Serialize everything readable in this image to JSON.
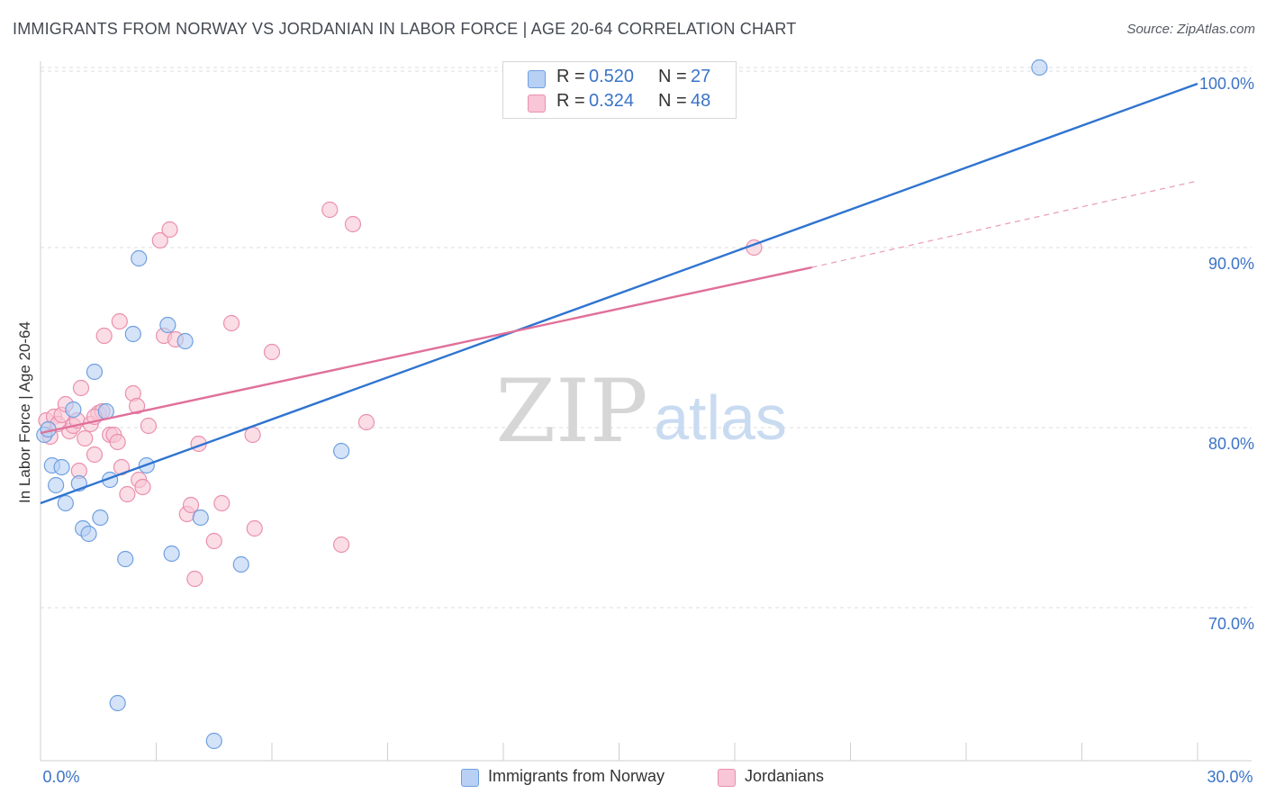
{
  "chart_data": {
    "type": "scatter",
    "title": "IMMIGRANTS FROM NORWAY VS JORDANIAN IN LABOR FORCE | AGE 20-64 CORRELATION CHART",
    "source": "Source: ZipAtlas.com",
    "xlabel": "",
    "ylabel": "In Labor Force | Age 20-64",
    "xlim": [
      0,
      30
    ],
    "ylim": [
      61.5,
      102
    ],
    "x_tick_labels": {
      "left": "0.0%",
      "right": "30.0%"
    },
    "y_ticks": [
      {
        "value": 70,
        "label": "70.0%"
      },
      {
        "value": 80,
        "label": "80.0%"
      },
      {
        "value": 90,
        "label": "90.0%"
      },
      {
        "value": 100,
        "label": "100.0%"
      }
    ],
    "watermark": {
      "zip": "ZIP",
      "atlas": "atlas"
    },
    "colors": {
      "norway_fill": "#b8d0f4",
      "norway_stroke": "#6f9fe0",
      "norway_line": "#2f74d0",
      "jordan_fill": "#f8c6d6",
      "jordan_stroke": "#ea8fad",
      "jordan_line": "#e0709a",
      "accent_text": "#3b73c7",
      "grid": "#dcdcdc"
    },
    "stats": [
      {
        "series": "Immigrants from Norway",
        "r_label": "R =",
        "r_value": "0.520",
        "n_label": "N =",
        "n_value": "27"
      },
      {
        "series": "Jordanians",
        "r_label": "R =",
        "r_value": "0.324",
        "n_label": "N =",
        "n_value": "48"
      }
    ],
    "series": [
      {
        "name": "Immigrants from Norway",
        "color_key": "norway",
        "points": [
          [
            0.1,
            79.6
          ],
          [
            0.2,
            79.9
          ],
          [
            0.3,
            77.9
          ],
          [
            0.4,
            76.8
          ],
          [
            0.55,
            77.8
          ],
          [
            0.65,
            75.8
          ],
          [
            0.85,
            81.0
          ],
          [
            1.0,
            76.9
          ],
          [
            1.1,
            74.4
          ],
          [
            1.25,
            74.1
          ],
          [
            1.4,
            83.1
          ],
          [
            1.55,
            75.0
          ],
          [
            1.7,
            80.9
          ],
          [
            1.8,
            77.1
          ],
          [
            2.2,
            72.7
          ],
          [
            2.4,
            85.2
          ],
          [
            2.55,
            89.4
          ],
          [
            2.75,
            77.9
          ],
          [
            3.3,
            85.7
          ],
          [
            3.4,
            73.0
          ],
          [
            3.75,
            84.8
          ],
          [
            4.15,
            75.0
          ],
          [
            4.5,
            62.6
          ],
          [
            5.2,
            72.4
          ],
          [
            7.8,
            78.7
          ],
          [
            2.0,
            64.7
          ],
          [
            25.9,
            100.0
          ]
        ],
        "trend": {
          "x1": 0,
          "y1": 75.8,
          "x2": 30,
          "y2": 99.1
        }
      },
      {
        "name": "Jordanians",
        "color_key": "jordan",
        "points": [
          [
            0.15,
            80.4
          ],
          [
            0.25,
            79.5
          ],
          [
            0.35,
            80.6
          ],
          [
            0.45,
            80.2
          ],
          [
            0.55,
            80.7
          ],
          [
            0.65,
            81.3
          ],
          [
            0.75,
            79.8
          ],
          [
            0.85,
            80.1
          ],
          [
            0.95,
            80.4
          ],
          [
            1.0,
            77.6
          ],
          [
            1.05,
            82.2
          ],
          [
            1.15,
            79.4
          ],
          [
            1.3,
            80.2
          ],
          [
            1.4,
            78.5
          ],
          [
            1.5,
            80.8
          ],
          [
            1.6,
            80.9
          ],
          [
            1.65,
            85.1
          ],
          [
            1.8,
            79.6
          ],
          [
            1.9,
            79.6
          ],
          [
            2.0,
            79.2
          ],
          [
            2.05,
            85.9
          ],
          [
            2.1,
            77.8
          ],
          [
            2.25,
            76.3
          ],
          [
            2.4,
            81.9
          ],
          [
            2.5,
            81.2
          ],
          [
            2.55,
            77.1
          ],
          [
            2.65,
            76.7
          ],
          [
            2.8,
            80.1
          ],
          [
            3.1,
            90.4
          ],
          [
            3.35,
            91.0
          ],
          [
            3.2,
            85.1
          ],
          [
            3.5,
            84.9
          ],
          [
            3.8,
            75.2
          ],
          [
            3.9,
            75.7
          ],
          [
            4.0,
            71.6
          ],
          [
            4.1,
            79.1
          ],
          [
            4.5,
            73.7
          ],
          [
            4.7,
            75.8
          ],
          [
            4.95,
            85.8
          ],
          [
            5.5,
            79.6
          ],
          [
            5.55,
            74.4
          ],
          [
            6.0,
            84.2
          ],
          [
            7.5,
            92.1
          ],
          [
            7.8,
            73.5
          ],
          [
            8.1,
            91.3
          ],
          [
            8.45,
            80.3
          ],
          [
            18.5,
            90.0
          ],
          [
            1.4,
            80.6
          ]
        ],
        "trend_solid": {
          "x1": 0,
          "y1": 79.7,
          "x2": 20,
          "y2": 88.9
        },
        "trend_dashed": {
          "x1": 20,
          "y1": 88.9,
          "x2": 30,
          "y2": 93.7
        }
      }
    ]
  }
}
